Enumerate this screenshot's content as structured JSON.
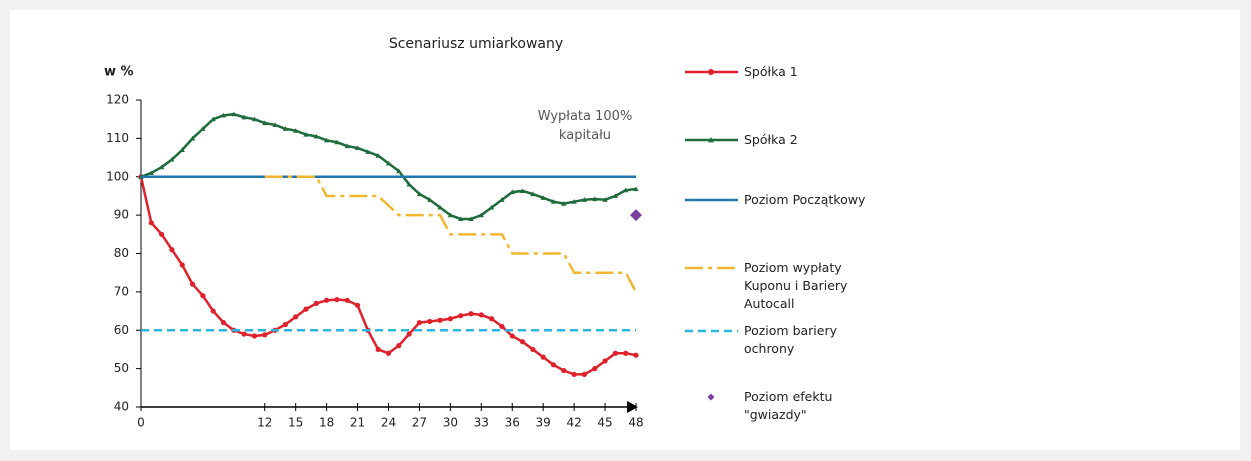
{
  "chart_data": {
    "type": "line",
    "title": "Scenariusz umiarkowany",
    "y_label": "w %",
    "annotation": "Wypłata 100% kapitału",
    "x": [
      0,
      1,
      2,
      3,
      4,
      5,
      6,
      7,
      8,
      9,
      10,
      11,
      12,
      13,
      14,
      15,
      16,
      17,
      18,
      19,
      20,
      21,
      22,
      23,
      24,
      25,
      26,
      27,
      28,
      29,
      30,
      31,
      32,
      33,
      34,
      35,
      36,
      37,
      38,
      39,
      40,
      41,
      42,
      43,
      44,
      45,
      46,
      47,
      48
    ],
    "series": [
      {
        "name": "Spółka 1",
        "color": "#e0202a",
        "marker": "circle",
        "values": [
          100,
          88,
          85,
          81,
          77,
          72,
          69,
          65,
          62,
          60,
          59,
          58.5,
          58.8,
          60,
          61.5,
          63.5,
          65.5,
          67,
          67.8,
          68,
          67.8,
          66.5,
          60,
          55,
          54,
          56,
          59,
          62,
          62.3,
          62.6,
          63,
          63.8,
          64.3,
          64,
          63,
          61,
          58.5,
          57,
          55,
          53,
          51,
          49.5,
          48.5,
          48.5,
          50,
          52,
          54,
          54,
          53.5
        ]
      },
      {
        "name": "Spółka 2",
        "color": "#1e6b3c",
        "marker": "triangle",
        "values": [
          100,
          101,
          102.5,
          104.5,
          107,
          110,
          112.5,
          115,
          116,
          116.3,
          115.5,
          115,
          114,
          113.5,
          112.5,
          112,
          111,
          110.5,
          109.5,
          109,
          108,
          107.5,
          106.5,
          105.5,
          103.5,
          101.5,
          98,
          95.5,
          94,
          92,
          90,
          89,
          89,
          90,
          92,
          94,
          96,
          96.3,
          95.5,
          94.5,
          93.5,
          93,
          93.5,
          94,
          94.2,
          94,
          95,
          96.5,
          96.8
        ]
      },
      {
        "name": "Poziom Początkowy",
        "color": "#2176ae",
        "x": [
          0,
          48
        ],
        "values": [
          100,
          100
        ]
      },
      {
        "name": "Poziom wypłaty Kuponu i Bariery Autocall",
        "color": "#f2b630",
        "dash": "18 5 4 5",
        "x": [
          12,
          17,
          18,
          23,
          25,
          29,
          30,
          35,
          36,
          41,
          42,
          47,
          48
        ],
        "values": [
          100,
          100,
          95,
          95,
          90,
          90,
          85,
          85,
          80,
          80,
          75,
          75,
          70
        ]
      },
      {
        "name": "Poziom bariery ochrony",
        "color": "#29b6e0",
        "dash": "8 5",
        "x": [
          0,
          48
        ],
        "values": [
          60,
          60
        ]
      },
      {
        "name": "Poziom efektu \"gwiazdy\"",
        "color": "#7b3fa0",
        "marker": "diamond",
        "line": false,
        "x": [
          48
        ],
        "values": [
          90
        ]
      }
    ],
    "xlim": [
      0,
      48
    ],
    "xticks": [
      0,
      12,
      15,
      18,
      21,
      24,
      27,
      30,
      33,
      36,
      39,
      42,
      45,
      48
    ],
    "ylim": [
      40,
      120
    ],
    "yticks": [
      40,
      50,
      60,
      70,
      80,
      90,
      100,
      110,
      120
    ]
  }
}
